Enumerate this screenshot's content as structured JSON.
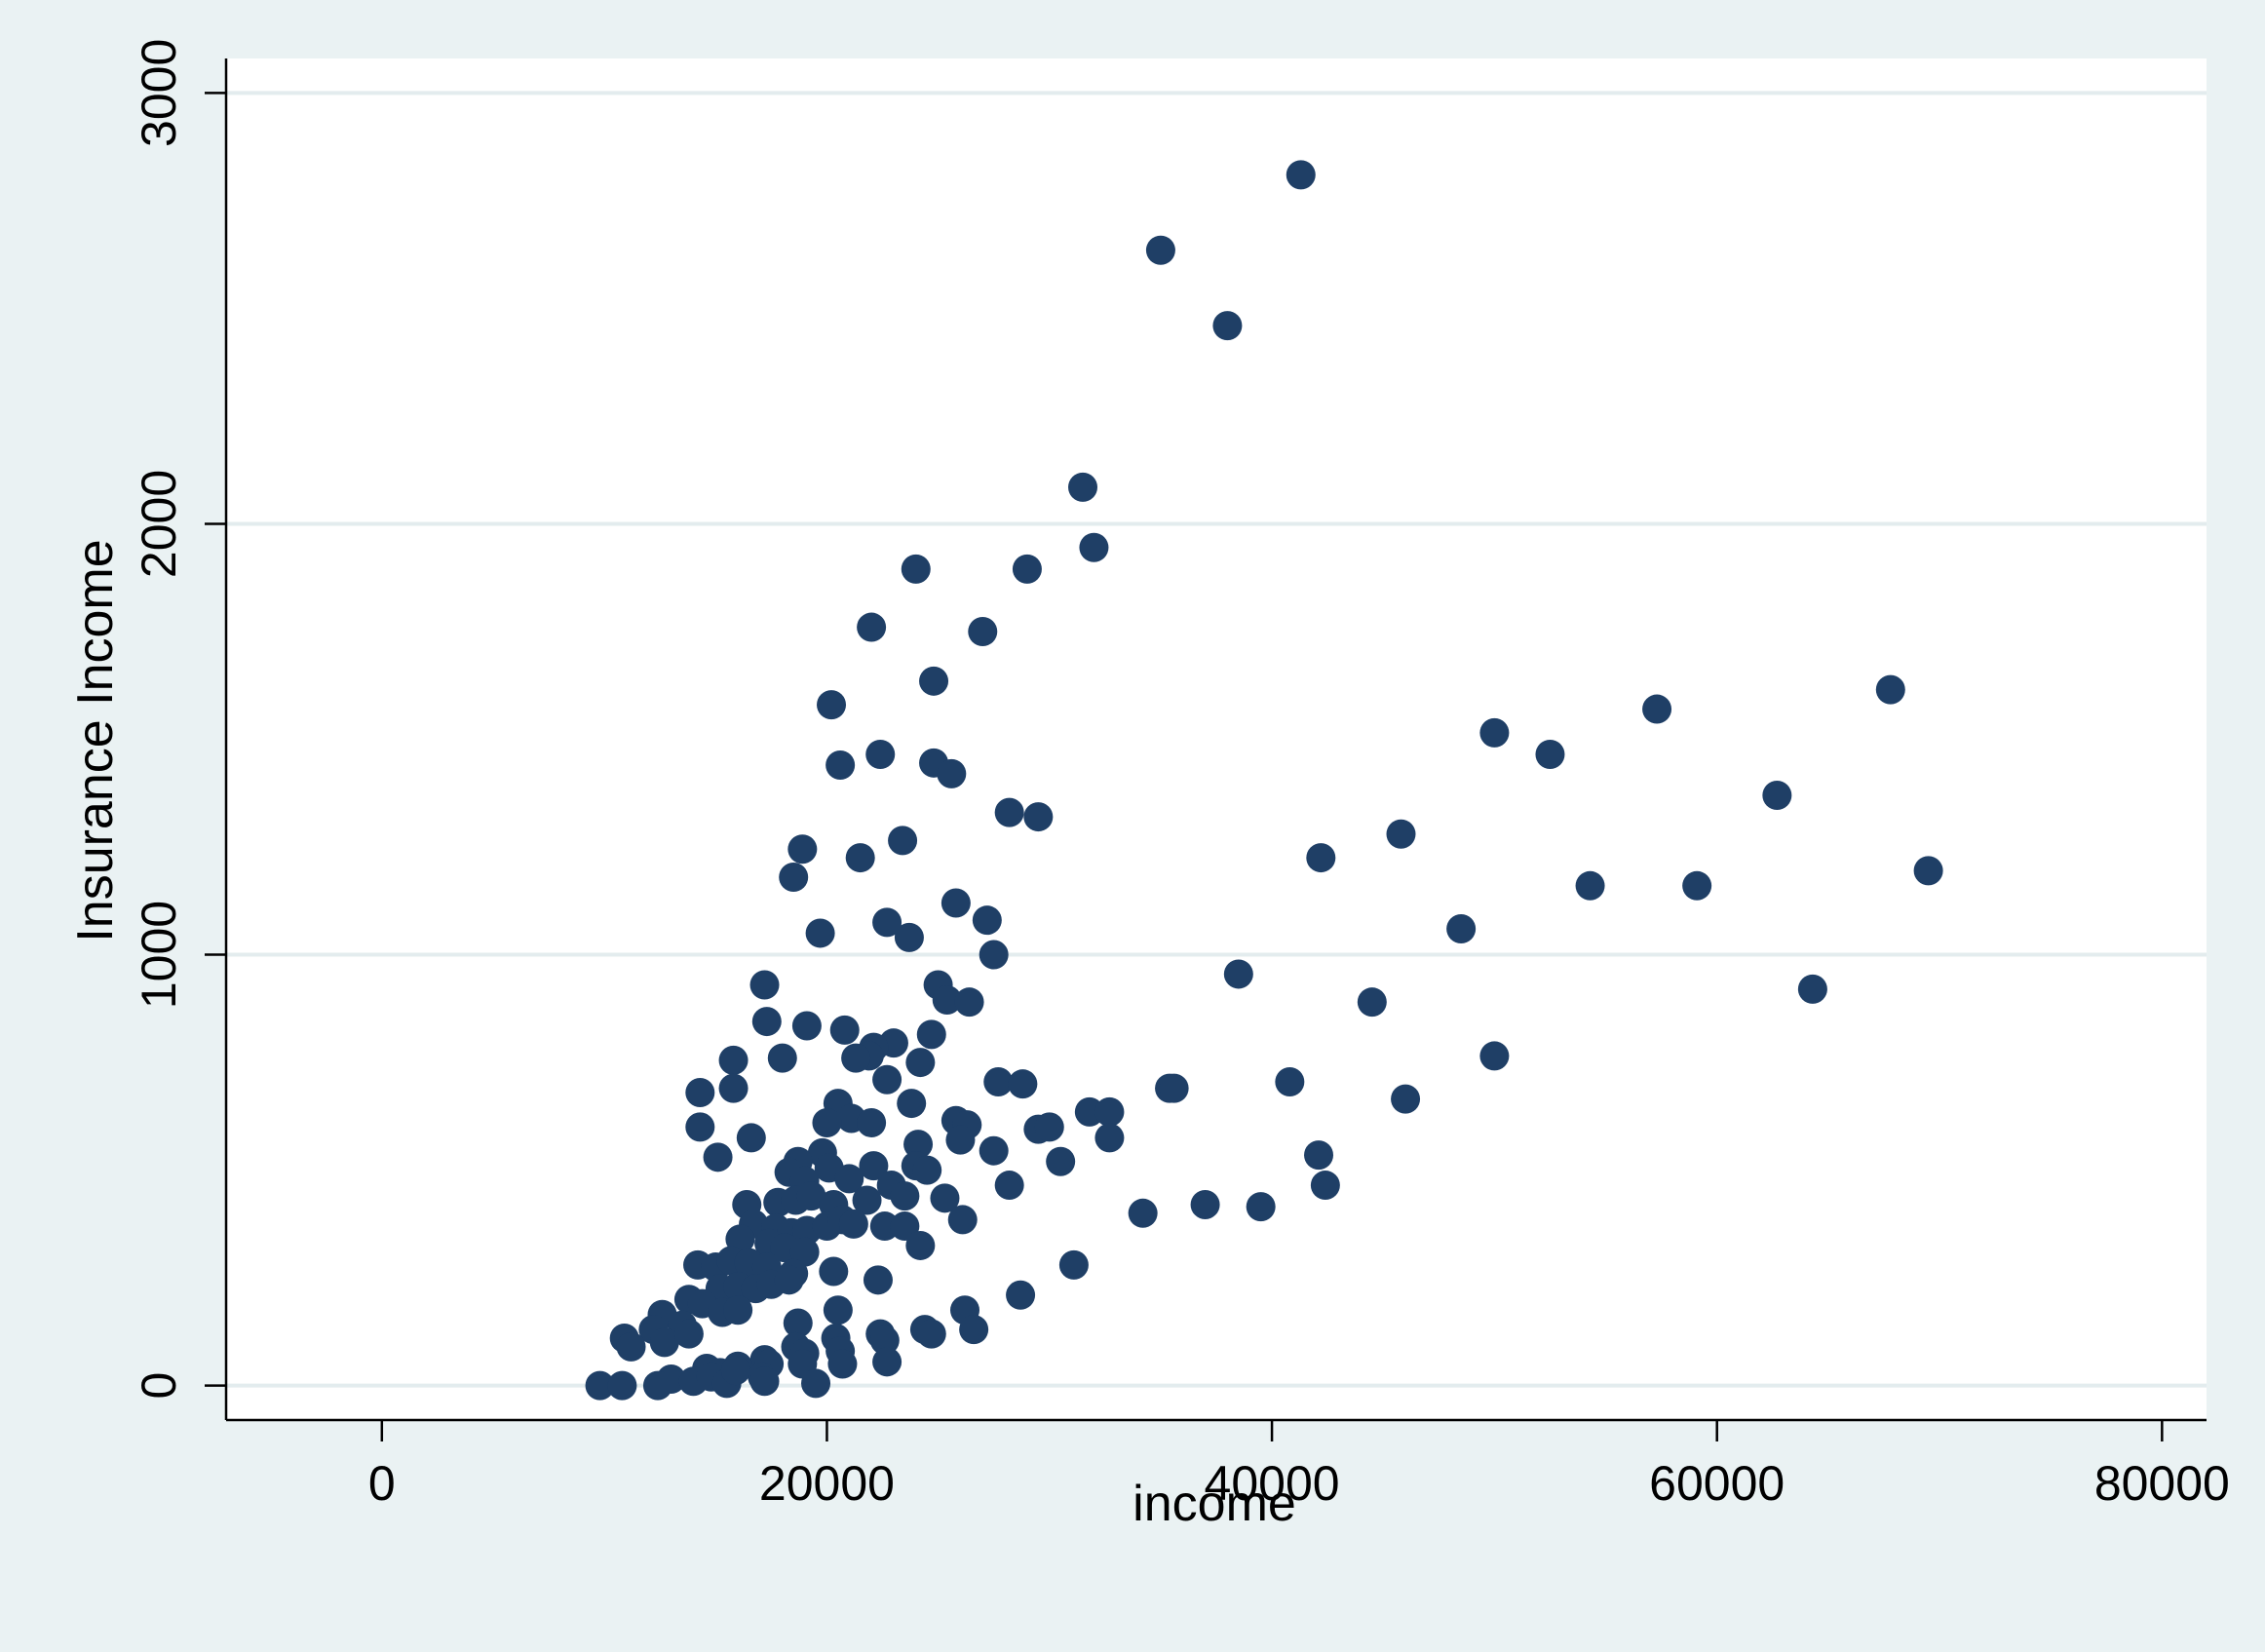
{
  "chart_data": {
    "type": "scatter",
    "title": "",
    "xlabel": "income",
    "ylabel": "Insurance Income",
    "xlim": [
      -7000,
      82000
    ],
    "ylim": [
      -80,
      3080
    ],
    "x_ticks": [
      0,
      20000,
      40000,
      60000,
      80000
    ],
    "y_ticks": [
      0,
      1000,
      2000,
      3000
    ],
    "x_tick_labels": [
      "0",
      "20000",
      "40000",
      "60000",
      "80000"
    ],
    "y_tick_labels": [
      "0",
      "1000",
      "2000",
      "3000"
    ],
    "grid": "horizontal",
    "legend": "none",
    "marker_color": "#1f3f66",
    "plot_background": "#ffffff",
    "outer_background": "#eaf2f3",
    "gridline_color": "#e3ecee",
    "points": [
      [
        41300,
        2810
      ],
      [
        35000,
        2635
      ],
      [
        38000,
        2460
      ],
      [
        31500,
        2085
      ],
      [
        32000,
        1945
      ],
      [
        29000,
        1895
      ],
      [
        24000,
        1895
      ],
      [
        22000,
        1760
      ],
      [
        27000,
        1750
      ],
      [
        24800,
        1635
      ],
      [
        20200,
        1580
      ],
      [
        57300,
        1570
      ],
      [
        67800,
        1615
      ],
      [
        50000,
        1515
      ],
      [
        52500,
        1465
      ],
      [
        22400,
        1465
      ],
      [
        20600,
        1440
      ],
      [
        24800,
        1445
      ],
      [
        25600,
        1420
      ],
      [
        62700,
        1370
      ],
      [
        28200,
        1330
      ],
      [
        29500,
        1320
      ],
      [
        45800,
        1280
      ],
      [
        23400,
        1265
      ],
      [
        18900,
        1245
      ],
      [
        42200,
        1225
      ],
      [
        21500,
        1225
      ],
      [
        69500,
        1195
      ],
      [
        18500,
        1180
      ],
      [
        54300,
        1160
      ],
      [
        59100,
        1160
      ],
      [
        25800,
        1120
      ],
      [
        27200,
        1080
      ],
      [
        22700,
        1075
      ],
      [
        48500,
        1060
      ],
      [
        23700,
        1040
      ],
      [
        19700,
        1050
      ],
      [
        27500,
        1000
      ],
      [
        38500,
        955
      ],
      [
        17200,
        930
      ],
      [
        64300,
        920
      ],
      [
        25000,
        930
      ],
      [
        25400,
        895
      ],
      [
        44500,
        890
      ],
      [
        26400,
        890
      ],
      [
        17300,
        845
      ],
      [
        19100,
        835
      ],
      [
        20800,
        825
      ],
      [
        24700,
        815
      ],
      [
        23000,
        795
      ],
      [
        22100,
        785
      ],
      [
        21900,
        765
      ],
      [
        24200,
        750
      ],
      [
        18000,
        760
      ],
      [
        50000,
        765
      ],
      [
        15800,
        755
      ],
      [
        14300,
        680
      ],
      [
        15800,
        690
      ],
      [
        21300,
        760
      ],
      [
        22700,
        710
      ],
      [
        27700,
        705
      ],
      [
        28800,
        700
      ],
      [
        40800,
        705
      ],
      [
        35400,
        690
      ],
      [
        35600,
        690
      ],
      [
        46000,
        665
      ],
      [
        23800,
        655
      ],
      [
        20500,
        655
      ],
      [
        21100,
        620
      ],
      [
        20000,
        610
      ],
      [
        22000,
        610
      ],
      [
        25800,
        615
      ],
      [
        26300,
        605
      ],
      [
        29500,
        595
      ],
      [
        30000,
        600
      ],
      [
        31800,
        635
      ],
      [
        32700,
        635
      ],
      [
        14300,
        600
      ],
      [
        16600,
        575
      ],
      [
        26000,
        570
      ],
      [
        32700,
        575
      ],
      [
        24100,
        560
      ],
      [
        19800,
        540
      ],
      [
        24000,
        510
      ],
      [
        24500,
        500
      ],
      [
        27500,
        545
      ],
      [
        30500,
        520
      ],
      [
        42100,
        535
      ],
      [
        15100,
        530
      ],
      [
        18700,
        520
      ],
      [
        18300,
        495
      ],
      [
        20100,
        505
      ],
      [
        22100,
        510
      ],
      [
        19000,
        475
      ],
      [
        21000,
        480
      ],
      [
        22900,
        465
      ],
      [
        28200,
        465
      ],
      [
        42400,
        465
      ],
      [
        16400,
        420
      ],
      [
        17800,
        425
      ],
      [
        18600,
        430
      ],
      [
        19300,
        440
      ],
      [
        20300,
        420
      ],
      [
        21800,
        430
      ],
      [
        23500,
        440
      ],
      [
        25300,
        435
      ],
      [
        37000,
        420
      ],
      [
        39500,
        415
      ],
      [
        34200,
        400
      ],
      [
        16700,
        375
      ],
      [
        17700,
        365
      ],
      [
        18400,
        355
      ],
      [
        19100,
        360
      ],
      [
        20000,
        370
      ],
      [
        20700,
        385
      ],
      [
        21200,
        375
      ],
      [
        22600,
        370
      ],
      [
        23500,
        370
      ],
      [
        26100,
        385
      ],
      [
        16100,
        340
      ],
      [
        17400,
        330
      ],
      [
        18100,
        320
      ],
      [
        19000,
        310
      ],
      [
        24200,
        325
      ],
      [
        14200,
        280
      ],
      [
        15000,
        275
      ],
      [
        15700,
        290
      ],
      [
        16500,
        285
      ],
      [
        17300,
        275
      ],
      [
        18500,
        260
      ],
      [
        31100,
        280
      ],
      [
        20300,
        265
      ],
      [
        15200,
        225
      ],
      [
        16000,
        230
      ],
      [
        16800,
        225
      ],
      [
        17500,
        235
      ],
      [
        18300,
        245
      ],
      [
        22300,
        245
      ],
      [
        13800,
        200
      ],
      [
        14400,
        190
      ],
      [
        15300,
        170
      ],
      [
        16000,
        175
      ],
      [
        12600,
        165
      ],
      [
        13500,
        140
      ],
      [
        12200,
        130
      ],
      [
        12700,
        100
      ],
      [
        13800,
        120
      ],
      [
        10900,
        110
      ],
      [
        11200,
        90
      ],
      [
        18700,
        145
      ],
      [
        20500,
        175
      ],
      [
        26200,
        175
      ],
      [
        28700,
        210
      ],
      [
        20400,
        110
      ],
      [
        20600,
        80
      ],
      [
        22400,
        120
      ],
      [
        22600,
        105
      ],
      [
        24400,
        130
      ],
      [
        24700,
        120
      ],
      [
        26600,
        130
      ],
      [
        18600,
        90
      ],
      [
        19000,
        75
      ],
      [
        20700,
        50
      ],
      [
        22700,
        55
      ],
      [
        17200,
        60
      ],
      [
        17400,
        50
      ],
      [
        16000,
        45
      ],
      [
        14600,
        40
      ],
      [
        15200,
        30
      ],
      [
        13000,
        15
      ],
      [
        14000,
        10
      ],
      [
        14800,
        20
      ],
      [
        12400,
        0
      ],
      [
        15500,
        5
      ],
      [
        15900,
        35
      ],
      [
        17100,
        20
      ],
      [
        17200,
        10
      ],
      [
        18900,
        50
      ],
      [
        19500,
        5
      ],
      [
        9800,
        0
      ],
      [
        10800,
        0
      ]
    ]
  }
}
